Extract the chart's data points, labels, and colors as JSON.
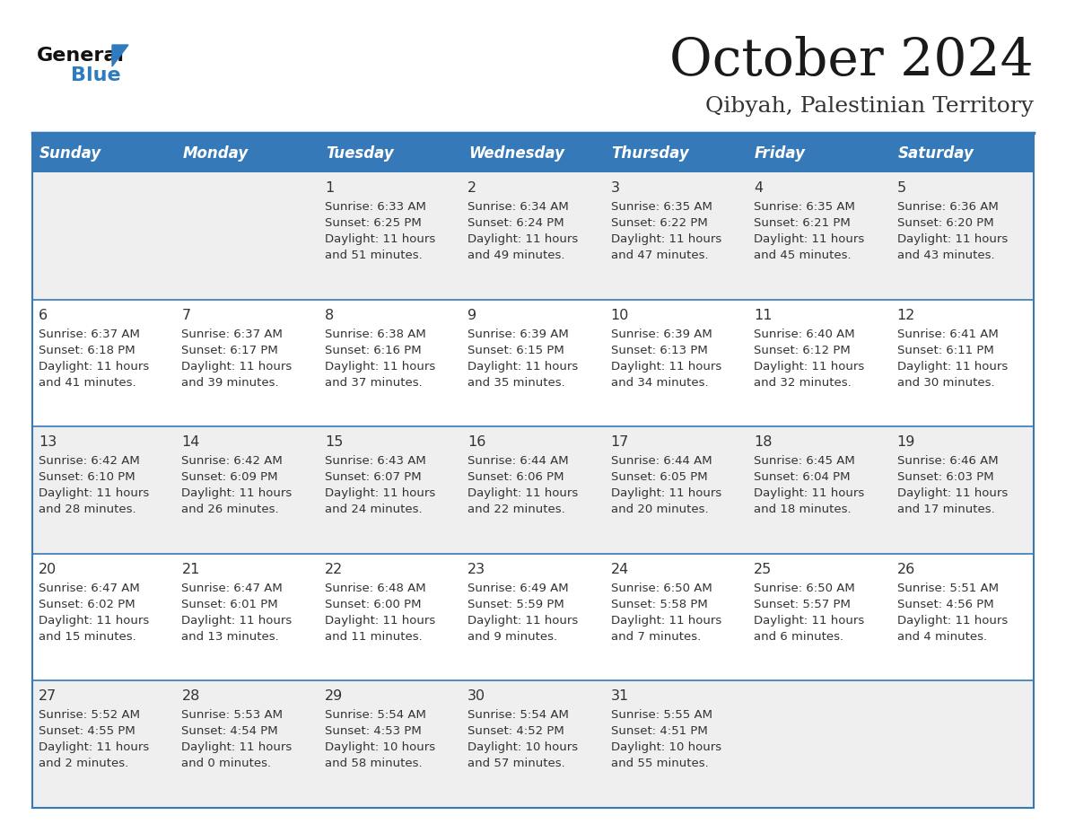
{
  "title": "October 2024",
  "subtitle": "Qibyah, Palestinian Territory",
  "header_bg_color": "#3579B8",
  "header_text_color": "#FFFFFF",
  "row_bg_light": "#EFEFEF",
  "row_bg_white": "#FFFFFF",
  "separator_color": "#3579B8",
  "text_color": "#333333",
  "days_of_week": [
    "Sunday",
    "Monday",
    "Tuesday",
    "Wednesday",
    "Thursday",
    "Friday",
    "Saturday"
  ],
  "calendar_data": [
    [
      {
        "day": "",
        "sunrise": "",
        "sunset": "",
        "daylight": ""
      },
      {
        "day": "",
        "sunrise": "",
        "sunset": "",
        "daylight": ""
      },
      {
        "day": "1",
        "sunrise": "Sunrise: 6:33 AM",
        "sunset": "Sunset: 6:25 PM",
        "daylight": "Daylight: 11 hours\nand 51 minutes."
      },
      {
        "day": "2",
        "sunrise": "Sunrise: 6:34 AM",
        "sunset": "Sunset: 6:24 PM",
        "daylight": "Daylight: 11 hours\nand 49 minutes."
      },
      {
        "day": "3",
        "sunrise": "Sunrise: 6:35 AM",
        "sunset": "Sunset: 6:22 PM",
        "daylight": "Daylight: 11 hours\nand 47 minutes."
      },
      {
        "day": "4",
        "sunrise": "Sunrise: 6:35 AM",
        "sunset": "Sunset: 6:21 PM",
        "daylight": "Daylight: 11 hours\nand 45 minutes."
      },
      {
        "day": "5",
        "sunrise": "Sunrise: 6:36 AM",
        "sunset": "Sunset: 6:20 PM",
        "daylight": "Daylight: 11 hours\nand 43 minutes."
      }
    ],
    [
      {
        "day": "6",
        "sunrise": "Sunrise: 6:37 AM",
        "sunset": "Sunset: 6:18 PM",
        "daylight": "Daylight: 11 hours\nand 41 minutes."
      },
      {
        "day": "7",
        "sunrise": "Sunrise: 6:37 AM",
        "sunset": "Sunset: 6:17 PM",
        "daylight": "Daylight: 11 hours\nand 39 minutes."
      },
      {
        "day": "8",
        "sunrise": "Sunrise: 6:38 AM",
        "sunset": "Sunset: 6:16 PM",
        "daylight": "Daylight: 11 hours\nand 37 minutes."
      },
      {
        "day": "9",
        "sunrise": "Sunrise: 6:39 AM",
        "sunset": "Sunset: 6:15 PM",
        "daylight": "Daylight: 11 hours\nand 35 minutes."
      },
      {
        "day": "10",
        "sunrise": "Sunrise: 6:39 AM",
        "sunset": "Sunset: 6:13 PM",
        "daylight": "Daylight: 11 hours\nand 34 minutes."
      },
      {
        "day": "11",
        "sunrise": "Sunrise: 6:40 AM",
        "sunset": "Sunset: 6:12 PM",
        "daylight": "Daylight: 11 hours\nand 32 minutes."
      },
      {
        "day": "12",
        "sunrise": "Sunrise: 6:41 AM",
        "sunset": "Sunset: 6:11 PM",
        "daylight": "Daylight: 11 hours\nand 30 minutes."
      }
    ],
    [
      {
        "day": "13",
        "sunrise": "Sunrise: 6:42 AM",
        "sunset": "Sunset: 6:10 PM",
        "daylight": "Daylight: 11 hours\nand 28 minutes."
      },
      {
        "day": "14",
        "sunrise": "Sunrise: 6:42 AM",
        "sunset": "Sunset: 6:09 PM",
        "daylight": "Daylight: 11 hours\nand 26 minutes."
      },
      {
        "day": "15",
        "sunrise": "Sunrise: 6:43 AM",
        "sunset": "Sunset: 6:07 PM",
        "daylight": "Daylight: 11 hours\nand 24 minutes."
      },
      {
        "day": "16",
        "sunrise": "Sunrise: 6:44 AM",
        "sunset": "Sunset: 6:06 PM",
        "daylight": "Daylight: 11 hours\nand 22 minutes."
      },
      {
        "day": "17",
        "sunrise": "Sunrise: 6:44 AM",
        "sunset": "Sunset: 6:05 PM",
        "daylight": "Daylight: 11 hours\nand 20 minutes."
      },
      {
        "day": "18",
        "sunrise": "Sunrise: 6:45 AM",
        "sunset": "Sunset: 6:04 PM",
        "daylight": "Daylight: 11 hours\nand 18 minutes."
      },
      {
        "day": "19",
        "sunrise": "Sunrise: 6:46 AM",
        "sunset": "Sunset: 6:03 PM",
        "daylight": "Daylight: 11 hours\nand 17 minutes."
      }
    ],
    [
      {
        "day": "20",
        "sunrise": "Sunrise: 6:47 AM",
        "sunset": "Sunset: 6:02 PM",
        "daylight": "Daylight: 11 hours\nand 15 minutes."
      },
      {
        "day": "21",
        "sunrise": "Sunrise: 6:47 AM",
        "sunset": "Sunset: 6:01 PM",
        "daylight": "Daylight: 11 hours\nand 13 minutes."
      },
      {
        "day": "22",
        "sunrise": "Sunrise: 6:48 AM",
        "sunset": "Sunset: 6:00 PM",
        "daylight": "Daylight: 11 hours\nand 11 minutes."
      },
      {
        "day": "23",
        "sunrise": "Sunrise: 6:49 AM",
        "sunset": "Sunset: 5:59 PM",
        "daylight": "Daylight: 11 hours\nand 9 minutes."
      },
      {
        "day": "24",
        "sunrise": "Sunrise: 6:50 AM",
        "sunset": "Sunset: 5:58 PM",
        "daylight": "Daylight: 11 hours\nand 7 minutes."
      },
      {
        "day": "25",
        "sunrise": "Sunrise: 6:50 AM",
        "sunset": "Sunset: 5:57 PM",
        "daylight": "Daylight: 11 hours\nand 6 minutes."
      },
      {
        "day": "26",
        "sunrise": "Sunrise: 5:51 AM",
        "sunset": "Sunset: 4:56 PM",
        "daylight": "Daylight: 11 hours\nand 4 minutes."
      }
    ],
    [
      {
        "day": "27",
        "sunrise": "Sunrise: 5:52 AM",
        "sunset": "Sunset: 4:55 PM",
        "daylight": "Daylight: 11 hours\nand 2 minutes."
      },
      {
        "day": "28",
        "sunrise": "Sunrise: 5:53 AM",
        "sunset": "Sunset: 4:54 PM",
        "daylight": "Daylight: 11 hours\nand 0 minutes."
      },
      {
        "day": "29",
        "sunrise": "Sunrise: 5:54 AM",
        "sunset": "Sunset: 4:53 PM",
        "daylight": "Daylight: 10 hours\nand 58 minutes."
      },
      {
        "day": "30",
        "sunrise": "Sunrise: 5:54 AM",
        "sunset": "Sunset: 4:52 PM",
        "daylight": "Daylight: 10 hours\nand 57 minutes."
      },
      {
        "day": "31",
        "sunrise": "Sunrise: 5:55 AM",
        "sunset": "Sunset: 4:51 PM",
        "daylight": "Daylight: 10 hours\nand 55 minutes."
      },
      {
        "day": "",
        "sunrise": "",
        "sunset": "",
        "daylight": ""
      },
      {
        "day": "",
        "sunrise": "",
        "sunset": "",
        "daylight": ""
      }
    ]
  ]
}
